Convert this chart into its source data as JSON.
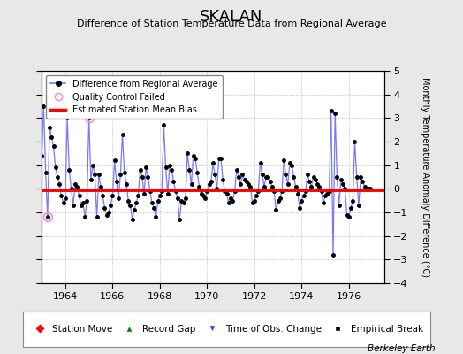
{
  "title": "SKALAN",
  "subtitle": "Difference of Station Temperature Data from Regional Average",
  "ylabel": "Monthly Temperature Anomaly Difference (°C)",
  "credit": "Berkeley Earth",
  "xlim": [
    1963.0,
    1977.5
  ],
  "ylim": [
    -4,
    5
  ],
  "yticks": [
    -4,
    -3,
    -2,
    -1,
    0,
    1,
    2,
    3,
    4,
    5
  ],
  "xticks": [
    1964,
    1966,
    1968,
    1970,
    1972,
    1974,
    1976
  ],
  "bias": -0.07,
  "bg_color": "#e8e8e8",
  "plot_bg": "#ffffff",
  "line_color": "#7777ff",
  "bias_color": "#ff0000",
  "marker_color": "#000000",
  "start_year": 1963.0,
  "months_per_year": 12,
  "n_points": 168,
  "qc_indices": [
    3,
    24
  ],
  "vals": [
    1.4,
    3.5,
    0.7,
    -1.2,
    2.6,
    2.2,
    1.8,
    0.9,
    0.5,
    0.2,
    -0.3,
    -0.6,
    -0.4,
    3.0,
    0.8,
    0.0,
    -0.7,
    0.2,
    0.1,
    -0.3,
    -0.7,
    -0.6,
    -1.2,
    -0.5,
    3.0,
    0.4,
    1.0,
    0.6,
    -1.2,
    0.6,
    0.1,
    -0.3,
    -0.8,
    -1.1,
    -1.0,
    -0.7,
    -0.3,
    1.2,
    0.3,
    -0.4,
    0.6,
    2.3,
    0.7,
    0.2,
    -0.5,
    -0.7,
    -1.3,
    -0.9,
    -0.6,
    -0.3,
    0.8,
    0.5,
    -0.2,
    0.9,
    0.5,
    -0.1,
    -0.6,
    -0.8,
    -1.2,
    -0.5,
    -0.3,
    -0.1,
    2.7,
    0.9,
    -0.2,
    1.0,
    0.8,
    0.3,
    -0.1,
    -0.4,
    -1.3,
    -0.5,
    -0.6,
    -0.4,
    1.5,
    0.8,
    0.2,
    1.4,
    1.3,
    0.7,
    0.1,
    -0.2,
    -0.3,
    -0.4,
    -0.1,
    0.2,
    0.3,
    1.1,
    0.6,
    0.0,
    1.3,
    1.3,
    0.4,
    -0.1,
    -0.2,
    -0.6,
    -0.4,
    -0.5,
    -0.1,
    0.8,
    0.5,
    0.2,
    0.6,
    0.4,
    0.3,
    0.2,
    0.1,
    -0.6,
    -0.5,
    -0.3,
    -0.1,
    1.1,
    0.6,
    0.1,
    0.5,
    0.5,
    0.3,
    0.1,
    -0.1,
    -0.9,
    -0.5,
    -0.4,
    -0.1,
    1.2,
    0.6,
    0.2,
    1.1,
    1.0,
    0.5,
    0.1,
    -0.2,
    -0.8,
    -0.5,
    -0.3,
    -0.1,
    0.6,
    0.3,
    0.1,
    0.5,
    0.4,
    0.2,
    0.1,
    -0.1,
    -0.6,
    -0.3,
    -0.2,
    -0.1,
    3.3,
    -2.8,
    3.2,
    0.5,
    -0.7,
    0.4,
    0.2,
    0.0,
    -1.1,
    -1.2,
    -0.8,
    -0.5,
    2.0,
    0.5,
    -0.7,
    0.5,
    0.3,
    0.1
  ]
}
